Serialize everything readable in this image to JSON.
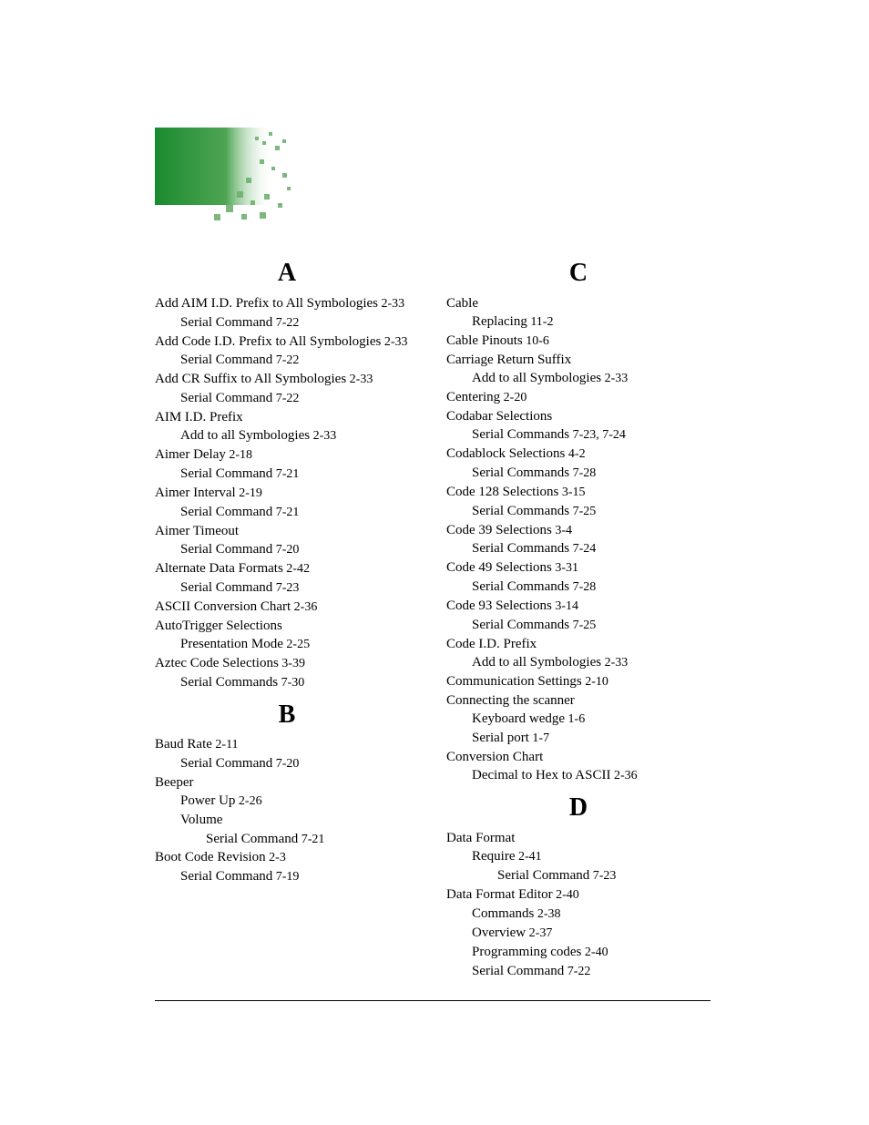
{
  "logo": {
    "bg_color": "#1a8a2f",
    "dot_color": "#5fa85f",
    "light_color": "#c8e0c0"
  },
  "left_column": [
    {
      "type": "letter",
      "text": "A"
    },
    {
      "indent": 0,
      "text": "Add AIM I.D. Prefix to All Symbologies",
      "ref": " 2-33"
    },
    {
      "indent": 1,
      "text": "Serial Command",
      "ref": " 7-22"
    },
    {
      "indent": 0,
      "text": "Add Code I.D. Prefix to All Symbologies",
      "ref": " 2-33"
    },
    {
      "indent": 1,
      "text": "Serial Command",
      "ref": " 7-22"
    },
    {
      "indent": 0,
      "text": "Add CR Suffix to All Symbologies",
      "ref": " 2-33"
    },
    {
      "indent": 1,
      "text": "Serial Command",
      "ref": " 7-22"
    },
    {
      "indent": 0,
      "text": "AIM I.D. Prefix",
      "ref": ""
    },
    {
      "indent": 1,
      "text": "Add to all Symbologies",
      "ref": " 2-33"
    },
    {
      "indent": 0,
      "text": "Aimer Delay",
      "ref": " 2-18"
    },
    {
      "indent": 1,
      "text": "Serial Command",
      "ref": " 7-21"
    },
    {
      "indent": 0,
      "text": "Aimer Interval",
      "ref": " 2-19"
    },
    {
      "indent": 1,
      "text": "Serial Command",
      "ref": " 7-21"
    },
    {
      "indent": 0,
      "text": "Aimer Timeout",
      "ref": ""
    },
    {
      "indent": 1,
      "text": "Serial Command",
      "ref": " 7-20"
    },
    {
      "indent": 0,
      "text": "Alternate Data Formats",
      "ref": " 2-42"
    },
    {
      "indent": 1,
      "text": "Serial Command",
      "ref": " 7-23"
    },
    {
      "indent": 0,
      "text": "ASCII Conversion Chart",
      "ref": " 2-36"
    },
    {
      "indent": 0,
      "text": "AutoTrigger Selections",
      "ref": ""
    },
    {
      "indent": 1,
      "text": "Presentation Mode",
      "ref": " 2-25"
    },
    {
      "indent": 0,
      "text": "Aztec Code Selections",
      "ref": " 3-39"
    },
    {
      "indent": 1,
      "text": "Serial Commands",
      "ref": " 7-30"
    },
    {
      "type": "letter",
      "text": "B"
    },
    {
      "indent": 0,
      "text": "Baud Rate",
      "ref": " 2-11"
    },
    {
      "indent": 1,
      "text": "Serial Command",
      "ref": " 7-20"
    },
    {
      "indent": 0,
      "text": "Beeper",
      "ref": ""
    },
    {
      "indent": 1,
      "text": "Power Up",
      "ref": " 2-26"
    },
    {
      "indent": 1,
      "text": "Volume",
      "ref": ""
    },
    {
      "indent": 2,
      "text": "Serial Command",
      "ref": " 7-21"
    },
    {
      "indent": 0,
      "text": "Boot Code Revision",
      "ref": " 2-3"
    },
    {
      "indent": 1,
      "text": "Serial Command",
      "ref": " 7-19"
    }
  ],
  "right_column": [
    {
      "type": "letter",
      "text": "C"
    },
    {
      "indent": 0,
      "text": "Cable",
      "ref": ""
    },
    {
      "indent": 1,
      "text": "Replacing",
      "ref": " 11-2"
    },
    {
      "indent": 0,
      "text": "Cable Pinouts",
      "ref": " 10-6"
    },
    {
      "indent": 0,
      "text": "Carriage Return Suffix",
      "ref": ""
    },
    {
      "indent": 1,
      "text": "Add to all Symbologies",
      "ref": " 2-33"
    },
    {
      "indent": 0,
      "text": "Centering",
      "ref": " 2-20"
    },
    {
      "indent": 0,
      "text": "Codabar Selections",
      "ref": ""
    },
    {
      "indent": 1,
      "text": "Serial Commands",
      "ref": " 7-23, 7-24"
    },
    {
      "indent": 0,
      "text": "Codablock Selections",
      "ref": " 4-2"
    },
    {
      "indent": 1,
      "text": "Serial Commands",
      "ref": " 7-28"
    },
    {
      "indent": 0,
      "text": "Code 128 Selections",
      "ref": " 3-15"
    },
    {
      "indent": 1,
      "text": "Serial Commands",
      "ref": " 7-25"
    },
    {
      "indent": 0,
      "text": "Code 39 Selections",
      "ref": " 3-4"
    },
    {
      "indent": 1,
      "text": "Serial Commands",
      "ref": " 7-24"
    },
    {
      "indent": 0,
      "text": "Code 49 Selections",
      "ref": " 3-31"
    },
    {
      "indent": 1,
      "text": "Serial Commands",
      "ref": " 7-28"
    },
    {
      "indent": 0,
      "text": "Code 93 Selections",
      "ref": " 3-14"
    },
    {
      "indent": 1,
      "text": "Serial Commands",
      "ref": " 7-25"
    },
    {
      "indent": 0,
      "text": "Code I.D. Prefix",
      "ref": ""
    },
    {
      "indent": 1,
      "text": "Add to all Symbologies",
      "ref": " 2-33"
    },
    {
      "indent": 0,
      "text": "Communication Settings",
      "ref": " 2-10"
    },
    {
      "indent": 0,
      "text": "Connecting the scanner",
      "ref": ""
    },
    {
      "indent": 1,
      "text": "Keyboard wedge",
      "ref": " 1-6"
    },
    {
      "indent": 1,
      "text": "Serial port",
      "ref": " 1-7"
    },
    {
      "indent": 0,
      "text": "Conversion Chart",
      "ref": ""
    },
    {
      "indent": 1,
      "text": "Decimal to Hex to ASCII",
      "ref": " 2-36"
    },
    {
      "type": "letter",
      "text": "D"
    },
    {
      "indent": 0,
      "text": "Data Format",
      "ref": ""
    },
    {
      "indent": 1,
      "text": "Require",
      "ref": " 2-41"
    },
    {
      "indent": 2,
      "text": "Serial Command",
      "ref": " 7-23"
    },
    {
      "indent": 0,
      "text": "Data Format Editor",
      "ref": " 2-40"
    },
    {
      "indent": 1,
      "text": "Commands",
      "ref": " 2-38"
    },
    {
      "indent": 1,
      "text": "Overview",
      "ref": " 2-37"
    },
    {
      "indent": 1,
      "text": "Programming codes",
      "ref": " 2-40"
    },
    {
      "indent": 1,
      "text": "Serial Command",
      "ref": " 7-22"
    }
  ]
}
